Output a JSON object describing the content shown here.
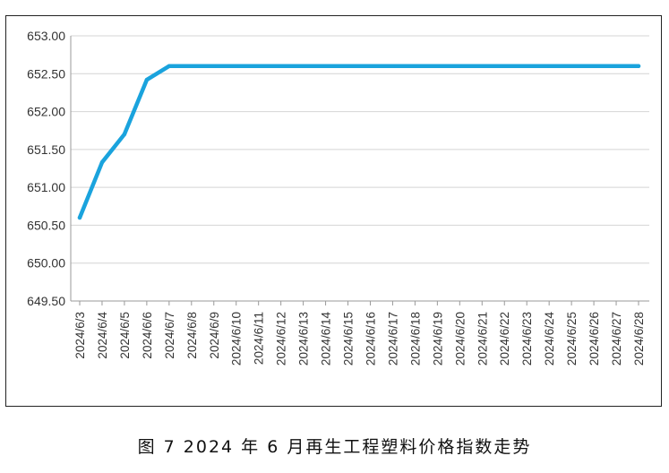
{
  "caption": "图 7  2024 年 6 月再生工程塑料价格指数走势",
  "chart_data": {
    "type": "line",
    "title": "",
    "xlabel": "",
    "ylabel": "",
    "ylim": [
      649.5,
      653.0
    ],
    "yticks": [
      "653.00",
      "652.50",
      "652.00",
      "651.50",
      "651.00",
      "650.50",
      "650.00",
      "649.50"
    ],
    "grid": true,
    "legend": "none",
    "line_color": "#1aa3dd",
    "categories": [
      "2024/6/3",
      "2024/6/4",
      "2024/6/5",
      "2024/6/6",
      "2024/6/7",
      "2024/6/8",
      "2024/6/9",
      "2024/6/10",
      "2024/6/11",
      "2024/6/12",
      "2024/6/13",
      "2024/6/14",
      "2024/6/15",
      "2024/6/16",
      "2024/6/17",
      "2024/6/18",
      "2024/6/19",
      "2024/6/20",
      "2024/6/21",
      "2024/6/22",
      "2024/6/23",
      "2024/6/24",
      "2024/6/25",
      "2024/6/26",
      "2024/6/27",
      "2024/6/28"
    ],
    "series": [
      {
        "values": [
          650.6,
          651.33,
          651.7,
          652.42,
          652.6,
          652.6,
          652.6,
          652.6,
          652.6,
          652.6,
          652.6,
          652.6,
          652.6,
          652.6,
          652.6,
          652.6,
          652.6,
          652.6,
          652.6,
          652.6,
          652.6,
          652.6,
          652.6,
          652.6,
          652.6,
          652.6
        ]
      }
    ]
  }
}
